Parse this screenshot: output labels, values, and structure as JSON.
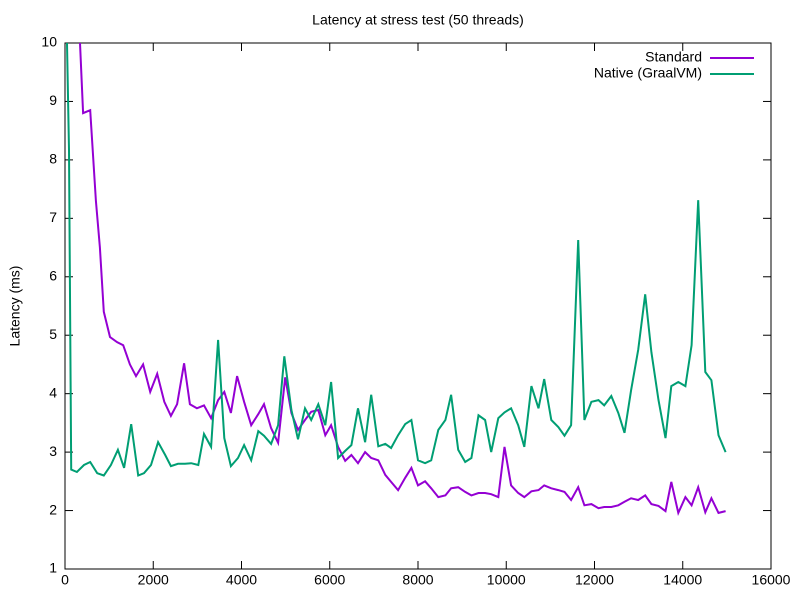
{
  "chart_data": {
    "type": "line",
    "title": "Latency at stress test (50 threads)",
    "y_label": "Latency (ms)",
    "xlim": [
      0,
      16000
    ],
    "xticks": [
      0,
      2000,
      4000,
      6000,
      8000,
      10000,
      12000,
      14000,
      16000
    ],
    "ylim": [
      1,
      10
    ],
    "yticks": [
      1,
      2,
      3,
      4,
      5,
      6,
      7,
      8,
      9,
      10
    ],
    "legend": "top-right",
    "series": [
      {
        "name": "Standard",
        "color": "#9400d3",
        "x": [
          340,
          410,
          570,
          700,
          790,
          880,
          1020,
          1180,
          1320,
          1470,
          1610,
          1770,
          1930,
          2090,
          2250,
          2400,
          2540,
          2700,
          2830,
          2990,
          3150,
          3310,
          3470,
          3610,
          3760,
          3900,
          4060,
          4220,
          4380,
          4510,
          4670,
          4830,
          4990,
          5130,
          5280,
          5440,
          5580,
          5740,
          5900,
          6030,
          6190,
          6350,
          6490,
          6640,
          6800,
          6940,
          7100,
          7260,
          7390,
          7550,
          7710,
          7850,
          8000,
          8160,
          8300,
          8460,
          8620,
          8750,
          8910,
          9070,
          9210,
          9370,
          9520,
          9660,
          9820,
          9960,
          10110,
          10270,
          10410,
          10570,
          10730,
          10860,
          11020,
          11180,
          11320,
          11470,
          11630,
          11770,
          11930,
          12090,
          12220,
          12380,
          12540,
          12680,
          12830,
          12990,
          13150,
          13290,
          13450,
          13610,
          13740,
          13900,
          14060,
          14200,
          14350,
          14510,
          14650,
          14810,
          14970
        ],
        "values": [
          10,
          8.8,
          8.85,
          7.3,
          6.5,
          5.4,
          4.97,
          4.88,
          4.83,
          4.5,
          4.3,
          4.5,
          4.03,
          4.34,
          3.86,
          3.62,
          3.82,
          4.52,
          3.82,
          3.75,
          3.8,
          3.58,
          3.89,
          4.03,
          3.67,
          4.3,
          3.86,
          3.46,
          3.65,
          3.82,
          3.41,
          3.16,
          4.28,
          3.67,
          3.38,
          3.55,
          3.69,
          3.72,
          3.29,
          3.46,
          3.09,
          2.85,
          2.95,
          2.81,
          3.0,
          2.9,
          2.86,
          2.61,
          2.49,
          2.35,
          2.56,
          2.73,
          2.43,
          2.5,
          2.38,
          2.23,
          2.26,
          2.38,
          2.4,
          2.32,
          2.26,
          2.3,
          2.3,
          2.28,
          2.23,
          3.09,
          2.43,
          2.3,
          2.23,
          2.33,
          2.35,
          2.43,
          2.38,
          2.35,
          2.32,
          2.18,
          2.4,
          2.09,
          2.11,
          2.04,
          2.06,
          2.06,
          2.09,
          2.15,
          2.21,
          2.18,
          2.26,
          2.11,
          2.08,
          1.99,
          2.49,
          1.96,
          2.23,
          2.09,
          2.4,
          1.97,
          2.21,
          1.96,
          1.99
        ]
      },
      {
        "name": "Native (GraalVM)",
        "color": "#009e73",
        "x": [
          45,
          90,
          140,
          270,
          430,
          570,
          730,
          880,
          1040,
          1200,
          1340,
          1500,
          1660,
          1790,
          1950,
          2110,
          2270,
          2400,
          2560,
          2720,
          2860,
          3020,
          3150,
          3310,
          3470,
          3610,
          3760,
          3920,
          4060,
          4220,
          4380,
          4510,
          4670,
          4830,
          4970,
          5130,
          5280,
          5440,
          5580,
          5740,
          5900,
          6030,
          6190,
          6350,
          6490,
          6640,
          6800,
          6940,
          7100,
          7260,
          7390,
          7550,
          7710,
          7850,
          8000,
          8160,
          8300,
          8460,
          8620,
          8750,
          8910,
          9070,
          9210,
          9370,
          9520,
          9660,
          9820,
          9960,
          10110,
          10270,
          10410,
          10570,
          10730,
          10860,
          11020,
          11180,
          11320,
          11470,
          11630,
          11770,
          11930,
          12090,
          12220,
          12380,
          12540,
          12680,
          12830,
          12990,
          13150,
          13290,
          13450,
          13610,
          13740,
          13900,
          14060,
          14200,
          14350,
          14510,
          14650,
          14810,
          14970
        ],
        "values": [
          10,
          8.17,
          2.7,
          2.66,
          2.78,
          2.83,
          2.64,
          2.6,
          2.78,
          3.04,
          2.73,
          3.48,
          2.6,
          2.64,
          2.78,
          3.17,
          2.95,
          2.76,
          2.8,
          2.8,
          2.81,
          2.78,
          3.31,
          3.09,
          4.92,
          3.24,
          2.76,
          2.9,
          3.12,
          2.86,
          3.36,
          3.28,
          3.14,
          3.46,
          4.64,
          3.72,
          3.22,
          3.75,
          3.55,
          3.82,
          3.46,
          4.2,
          2.9,
          3.02,
          3.12,
          3.75,
          3.17,
          3.98,
          3.1,
          3.14,
          3.07,
          3.29,
          3.48,
          3.55,
          2.86,
          2.81,
          2.86,
          3.38,
          3.55,
          3.98,
          3.04,
          2.83,
          2.9,
          3.63,
          3.55,
          3.0,
          3.58,
          3.68,
          3.75,
          3.46,
          3.09,
          4.13,
          3.75,
          4.25,
          3.55,
          3.43,
          3.28,
          3.46,
          6.63,
          3.55,
          3.86,
          3.89,
          3.8,
          3.96,
          3.67,
          3.33,
          4.06,
          4.75,
          5.7,
          4.71,
          3.89,
          3.24,
          4.13,
          4.2,
          4.13,
          4.83,
          7.31,
          4.37,
          4.23,
          3.29,
          3.0
        ]
      }
    ]
  }
}
